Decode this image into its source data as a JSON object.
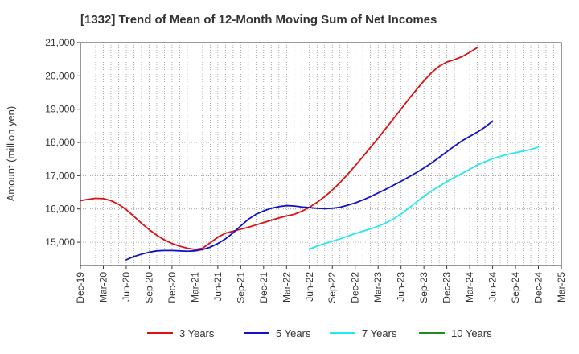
{
  "chart_data": {
    "type": "line",
    "title": "[1332]  Trend of Mean of 12-Month Moving Sum of Net Incomes",
    "xlabel": "",
    "ylabel": "Amount (million yen)",
    "ylim": [
      14300,
      21000
    ],
    "y_ticks": [
      15000,
      16000,
      17000,
      18000,
      19000,
      20000,
      21000
    ],
    "y_tick_labels": [
      "15,000",
      "16,000",
      "17,000",
      "18,000",
      "19,000",
      "20,000",
      "21,000"
    ],
    "x_tick_labels": [
      "Dec-19",
      "Mar-20",
      "Jun-20",
      "Sep-20",
      "Dec-20",
      "Mar-21",
      "Jun-21",
      "Sep-21",
      "Dec-21",
      "Mar-22",
      "Jun-22",
      "Sep-22",
      "Dec-22",
      "Mar-23",
      "Jun-23",
      "Sep-23",
      "Dec-23",
      "Mar-24",
      "Jun-24",
      "Sep-24",
      "Dec-24",
      "Mar-25"
    ],
    "grid": true,
    "legend_position": "bottom",
    "series": [
      {
        "name": "3 Years",
        "color": "#dd1111",
        "start_index": 0,
        "values": [
          16250,
          16290,
          16320,
          16310,
          16250,
          16140,
          15980,
          15780,
          15570,
          15380,
          15210,
          15070,
          14960,
          14880,
          14820,
          14780,
          14820,
          14980,
          15150,
          15270,
          15330,
          15390,
          15450,
          15520,
          15590,
          15660,
          15730,
          15790,
          15840,
          15930,
          16050,
          16200,
          16370,
          16570,
          16790,
          17040,
          17300,
          17570,
          17850,
          18130,
          18420,
          18710,
          19000,
          19300,
          19580,
          19850,
          20100,
          20290,
          20420,
          20490,
          20580,
          20710,
          20850
        ]
      },
      {
        "name": "5 Years",
        "color": "#1111cc",
        "start_index": 6,
        "values": [
          14470,
          14570,
          14640,
          14700,
          14740,
          14750,
          14750,
          14740,
          14730,
          14740,
          14780,
          14850,
          14960,
          15100,
          15280,
          15490,
          15690,
          15840,
          15940,
          16020,
          16070,
          16100,
          16090,
          16060,
          16040,
          16020,
          16010,
          16020,
          16050,
          16110,
          16180,
          16270,
          16370,
          16480,
          16590,
          16710,
          16830,
          16960,
          17090,
          17230,
          17380,
          17550,
          17720,
          17890,
          18050,
          18180,
          18310,
          18460,
          18640
        ]
      },
      {
        "name": "7 Years",
        "color": "#22e8f0",
        "start_index": 30,
        "values": [
          14790,
          14880,
          14960,
          15030,
          15100,
          15180,
          15260,
          15330,
          15400,
          15480,
          15580,
          15700,
          15850,
          16020,
          16200,
          16380,
          16540,
          16680,
          16820,
          16950,
          17070,
          17190,
          17320,
          17420,
          17510,
          17580,
          17640,
          17690,
          17740,
          17790,
          17860
        ]
      },
      {
        "name": "10 Years",
        "color": "#228822",
        "start_index": 0,
        "values": []
      }
    ]
  }
}
